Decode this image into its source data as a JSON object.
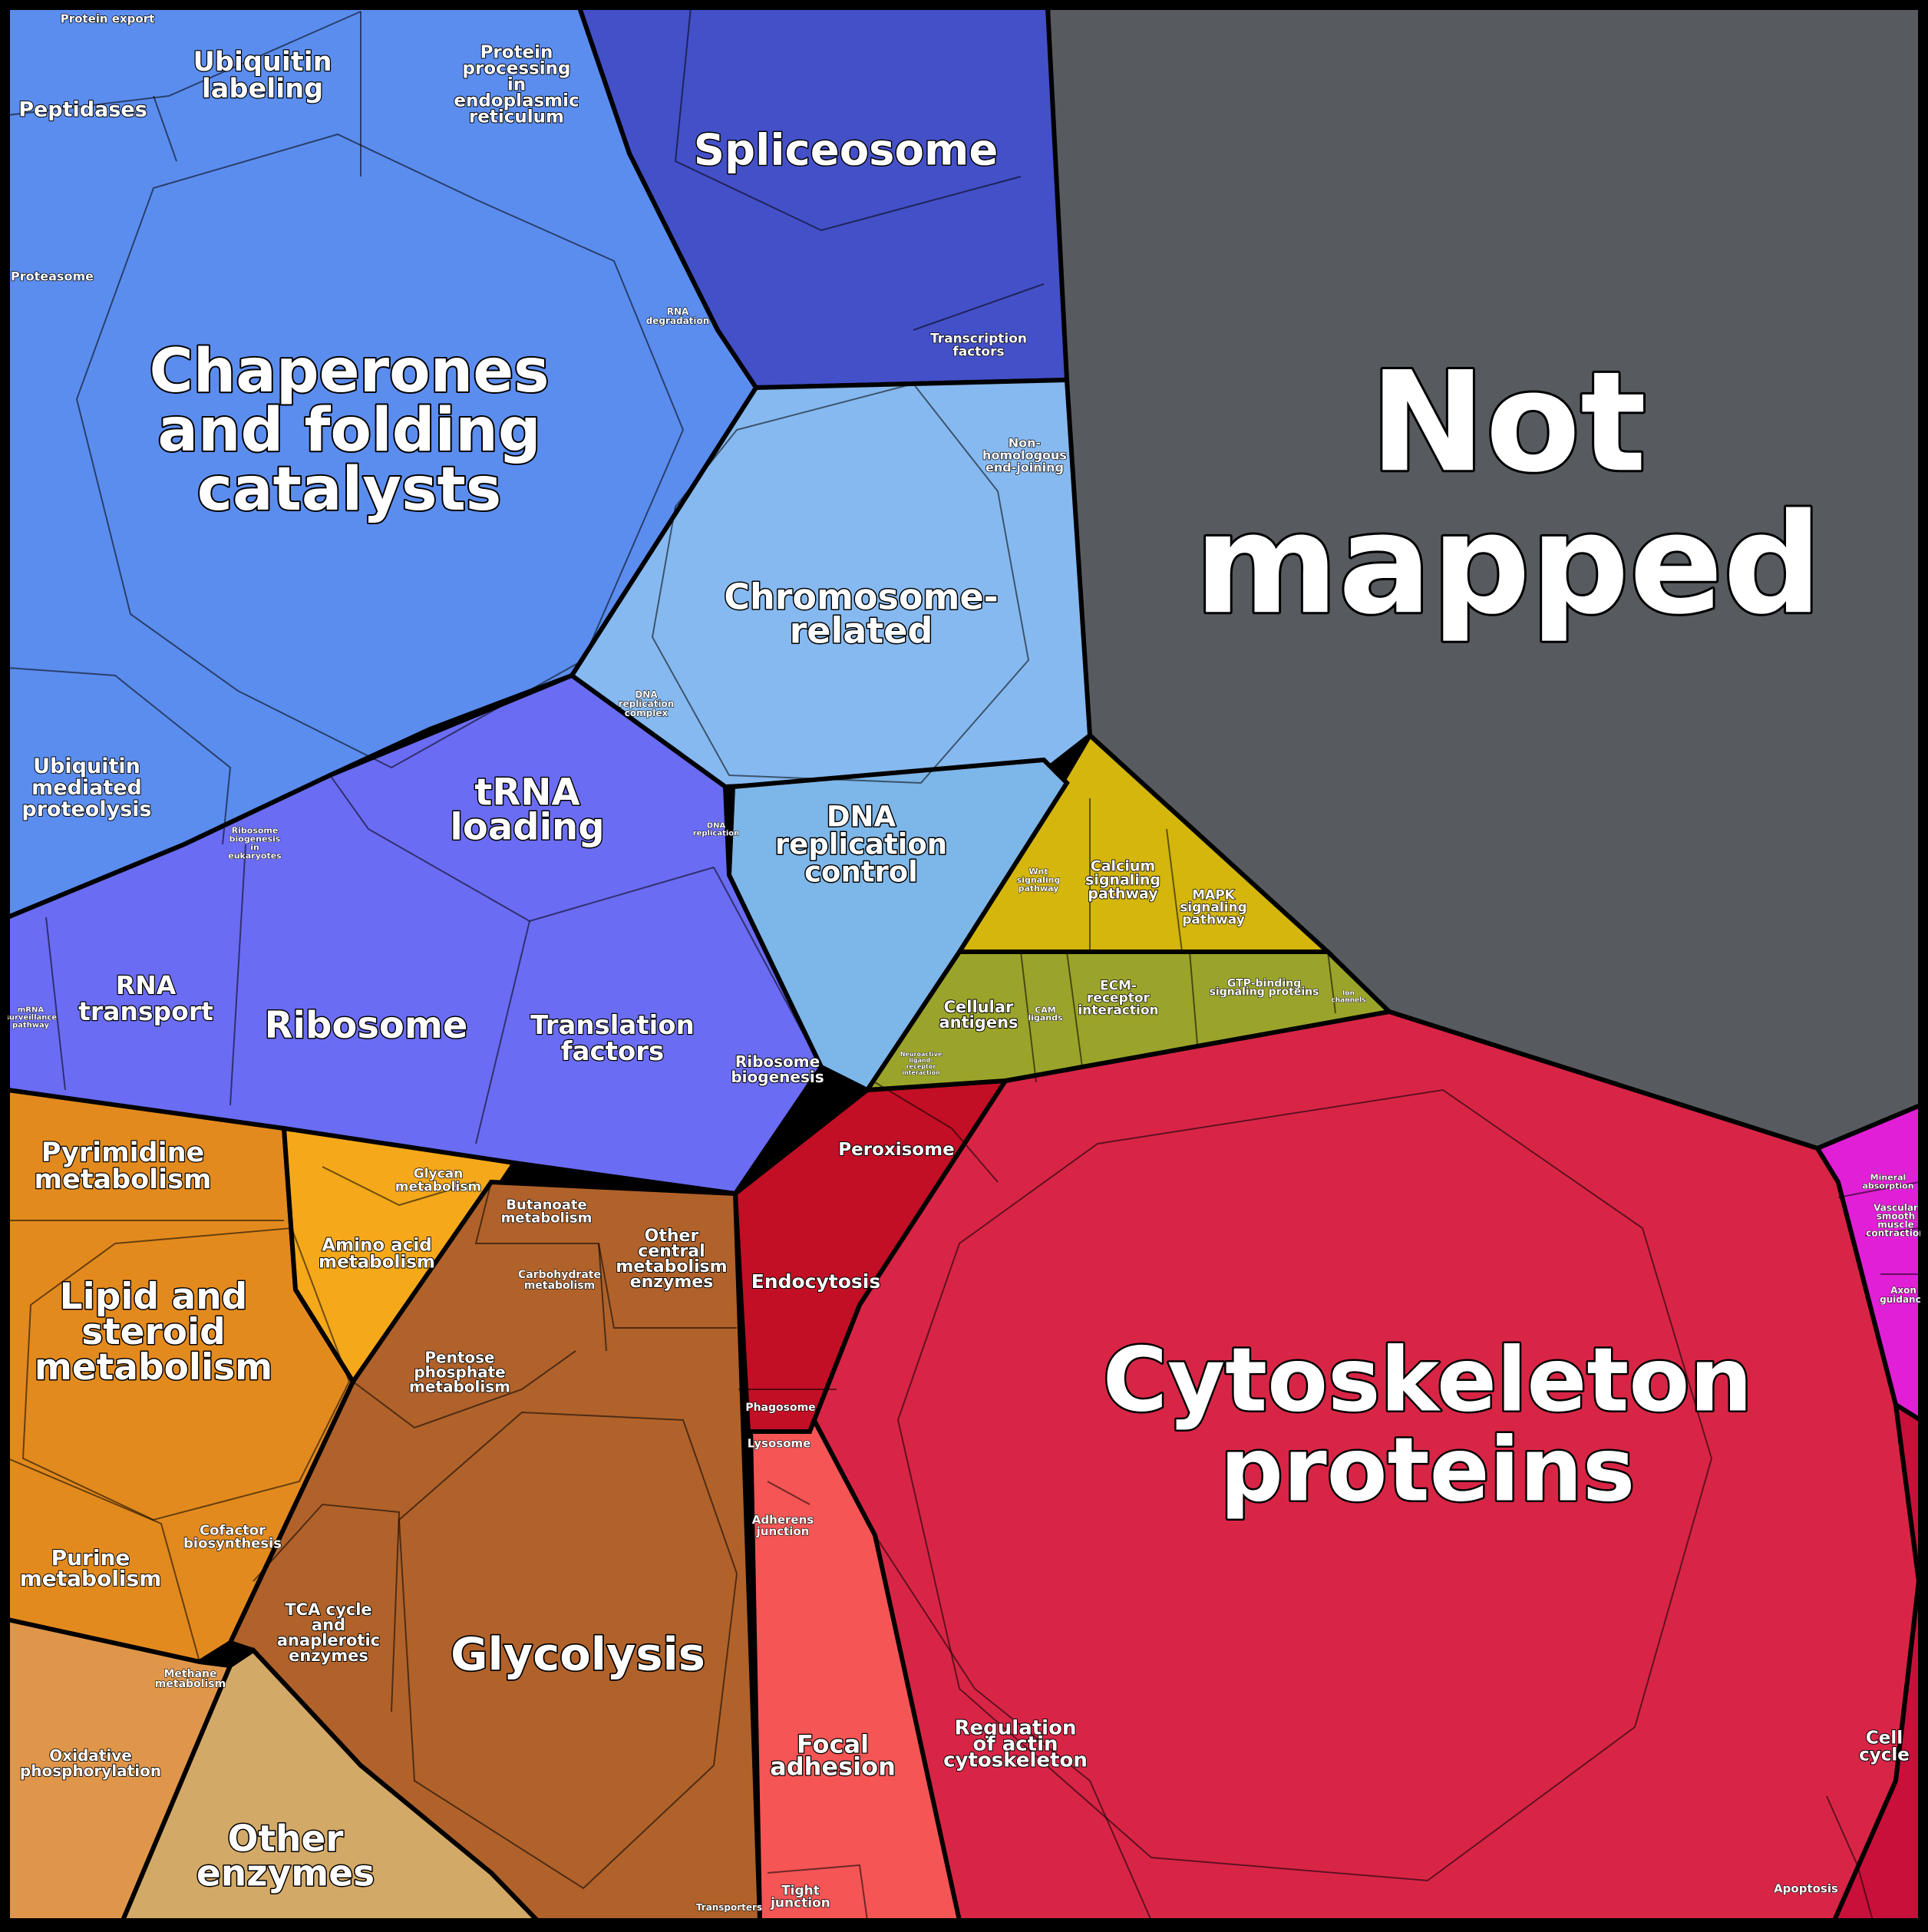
{
  "colors": {
    "not_mapped": "#575B5F",
    "chaperones": "#5B8DEF",
    "ribosome": "#6A6CF4",
    "spliceosome": "#4450C8",
    "chromosome": "#86B9F0",
    "dna_replication_control": "#7DB6E8",
    "signaling": "#D4B60C",
    "antigens": "#9BA42A",
    "lipid": "#E38A1E",
    "amino_acid": "#F5A81A",
    "glycolysis": "#B0622A",
    "oxidative": "#E0964A",
    "other_enzymes": "#D3A967",
    "endocytosis": "#C20F25",
    "cytoskeleton": "#D82546",
    "focal_adhesion": "#F55555",
    "magenta": "#E11FD6",
    "cell_cycle": "#C8103A"
  },
  "labels": {
    "not_mapped": [
      "Not",
      "mapped"
    ],
    "cytoskeleton": [
      "Cytoskeleton",
      "proteins"
    ],
    "chaperones": [
      "Chaperones",
      "and folding",
      "catalysts"
    ],
    "spliceosome": [
      "Spliceosome"
    ],
    "chromosome": [
      "Chromosome-",
      "related"
    ],
    "dna_replication_control": [
      "DNA",
      "replication",
      "control"
    ],
    "trna_loading": [
      "tRNA",
      "loading"
    ],
    "ribosome": [
      "Ribosome"
    ],
    "rna_transport": [
      "RNA",
      "transport"
    ],
    "translation_factors": [
      "Translation",
      "factors"
    ],
    "ribosome_biogenesis": [
      "Ribosome",
      "biogenesis"
    ],
    "ubiquitin_mediated": [
      "Ubiquitin",
      "mediated",
      "proteolysis"
    ],
    "ubiquitin_labeling": [
      "Ubiquitin",
      "labeling"
    ],
    "peptidases": [
      "Peptidases"
    ],
    "protein_export": [
      "Protein export"
    ],
    "proteasome": [
      "Proteasome"
    ],
    "protein_processing": [
      "Protein",
      "processing",
      "in",
      "endoplasmic",
      "reticulum"
    ],
    "rna_degradation": [
      "RNA",
      "degradation"
    ],
    "transcription_factors": [
      "Transcription",
      "factors"
    ],
    "non_homologous": [
      "Non-",
      "homologous",
      "end-joining"
    ],
    "dna_replication_complex": [
      "DNA",
      "replication",
      "complex"
    ],
    "dna_replication": [
      "DNA",
      "replication"
    ],
    "ribosome_biogenesis_euk": [
      "Ribosome",
      "biogenesis",
      "in",
      "eukaryotes"
    ],
    "mrna_surveillance": [
      "mRNA",
      "surveillance",
      "pathway"
    ],
    "pyrimidine": [
      "Pyrimidine",
      "metabolism"
    ],
    "glycan": [
      "Glycan",
      "metabolism"
    ],
    "amino_acid": [
      "Amino acid",
      "metabolism"
    ],
    "lipid": [
      "Lipid and",
      "steroid",
      "metabolism"
    ],
    "butanoate": [
      "Butanoate",
      "metabolism"
    ],
    "carbohydrate": [
      "Carbohydrate",
      "metabolism"
    ],
    "other_central": [
      "Other",
      "central",
      "metabolism",
      "enzymes"
    ],
    "pentose": [
      "Pentose",
      "phosphate",
      "metabolism"
    ],
    "cofactor": [
      "Cofactor",
      "biosynthesis"
    ],
    "purine": [
      "Purine",
      "metabolism"
    ],
    "tca": [
      "TCA cycle",
      "and",
      "anaplerotic",
      "enzymes"
    ],
    "glycolysis": [
      "Glycolysis"
    ],
    "methane": [
      "Methane",
      "metabolism"
    ],
    "oxidative": [
      "Oxidative",
      "phosphorylation"
    ],
    "other_enzymes": [
      "Other",
      "enzymes"
    ],
    "transporters": [
      "Transporters"
    ],
    "peroxisome": [
      "Peroxisome"
    ],
    "endocytosis": [
      "Endocytosis"
    ],
    "phagosome": [
      "Phagosome"
    ],
    "lysosome": [
      "Lysosome"
    ],
    "adherens": [
      "Adherens",
      "junction"
    ],
    "focal_adhesion": [
      "Focal",
      "adhesion"
    ],
    "regulation_actin": [
      "Regulation",
      "of actin",
      "cytoskeleton"
    ],
    "tight_junction": [
      "Tight",
      "junction"
    ],
    "cell_cycle": [
      "Cell",
      "cycle"
    ],
    "apoptosis": [
      "Apoptosis"
    ],
    "calcium": [
      "Calcium",
      "signaling",
      "pathway"
    ],
    "mapk": [
      "MAPK",
      "signaling",
      "pathway"
    ],
    "wnt": [
      "Wnt",
      "signaling",
      "pathway"
    ],
    "cellular_antigens": [
      "Cellular",
      "antigens"
    ],
    "ecm": [
      "ECM-",
      "receptor",
      "interaction"
    ],
    "gtp": [
      "GTP-binding",
      "signaling proteins"
    ],
    "cam": [
      "CAM",
      "ligands"
    ],
    "ion_channels": [
      "Ion",
      "channels"
    ],
    "neuroactive": [
      "Neuroactive",
      "ligand-",
      "receptor",
      "interaction"
    ],
    "mineral": [
      "Mineral",
      "absorption"
    ],
    "vascular": [
      "Vascular",
      "smooth",
      "muscle",
      "contraction"
    ],
    "axon": [
      "Axon",
      "guidance"
    ]
  }
}
